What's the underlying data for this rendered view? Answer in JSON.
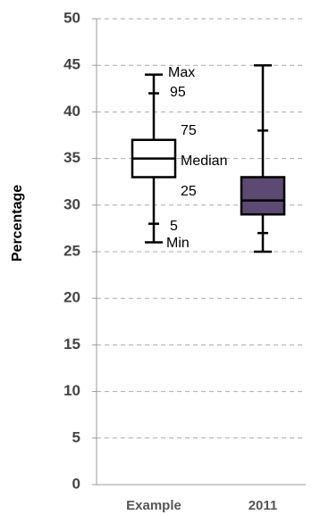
{
  "chart_data": {
    "type": "box",
    "y_label": "Percentage",
    "categories": [
      "Example",
      "2011"
    ],
    "boxes": [
      {
        "min": 26,
        "p5": 28,
        "q1": 33,
        "median": 35,
        "q3": 37,
        "p95": 42,
        "max": 44,
        "color": "#ffffff"
      },
      {
        "min": 25,
        "p5": 27,
        "q1": 29,
        "median": 30.5,
        "q3": 33,
        "p95": 38,
        "max": 45,
        "color": "#5c4a72"
      }
    ],
    "annotations": [
      "Max",
      "95",
      "75",
      "Median",
      "25",
      "5",
      "Min"
    ],
    "ylim": [
      0,
      50
    ],
    "yticks": [
      0,
      5,
      10,
      15,
      20,
      25,
      30,
      35,
      40,
      45,
      50
    ],
    "grid": true
  }
}
